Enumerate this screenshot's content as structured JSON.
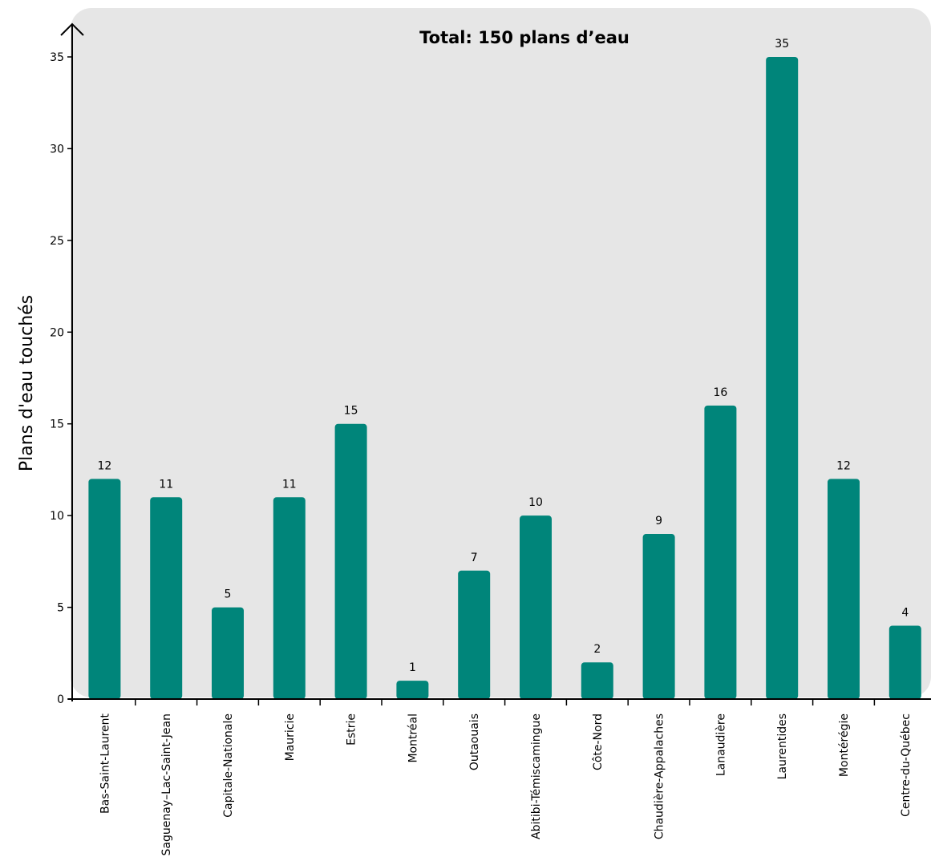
{
  "chart_data": {
    "type": "bar",
    "title": "Total: 150 plans d’eau",
    "xlabel": "",
    "ylabel": "Plans d'eau touchés",
    "categories": [
      "Bas-Saint-Laurent",
      "Saguenay–Lac-Saint-Jean",
      "Capitale-Nationale",
      "Mauricie",
      "Estrie",
      "Montréal",
      "Outaouais",
      "Abitibi-Témiscamingue",
      "Côte-Nord",
      "Chaudière-Appalaches",
      "Lanaudière",
      "Laurentides",
      "Montérégie",
      "Centre-du-Québec"
    ],
    "values": [
      12,
      11,
      5,
      11,
      15,
      1,
      7,
      10,
      2,
      9,
      16,
      35,
      12,
      4
    ],
    "data_labels": [
      "12",
      "11",
      "5",
      "11",
      "15",
      "1",
      "7",
      "10",
      "2",
      "9",
      "16",
      "35",
      "12",
      "4"
    ],
    "ylim": [
      0,
      35
    ],
    "yticks": [
      0,
      5,
      10,
      15,
      20,
      25,
      30,
      35
    ],
    "ytick_labels": [
      "0",
      "5",
      "10",
      "15",
      "20",
      "25",
      "30",
      "35"
    ],
    "grid": false,
    "colors": {
      "bar": "#00857A",
      "plot_background": "#E6E6E6",
      "axis": "#000000"
    }
  }
}
